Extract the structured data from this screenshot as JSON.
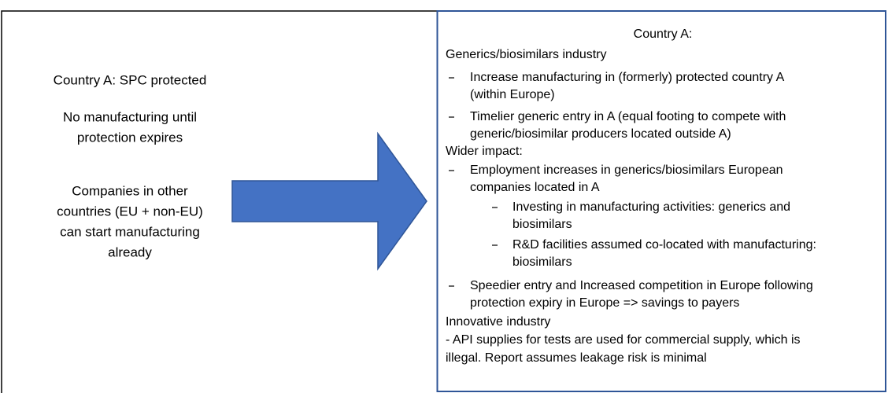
{
  "left_panel": {
    "heading": "Country A: SPC protected",
    "paragraphs": [
      [
        "No manufacturing until",
        "protection expires"
      ],
      [
        "Companies in other",
        "countries (EU + non-EU)",
        "can start manufacturing",
        "already"
      ]
    ]
  },
  "right_panel": {
    "title": "Country A:",
    "generics": {
      "heading": "Generics/biosimilars industry",
      "bullets": [
        [
          "Increase manufacturing in (formerly) protected country A",
          "(within Europe)"
        ],
        [
          "Timelier generic entry in A (equal footing to compete with",
          "generic/biosimilar producers located outside A)"
        ]
      ]
    },
    "wider": {
      "heading": "Wider impact:",
      "bullets": [
        [
          "Employment increases in generics/biosimilars European",
          "companies located in A"
        ]
      ],
      "sub_bullets": [
        [
          "Investing in manufacturing activities: generics and",
          "biosimilars"
        ],
        [
          "R&D facilities assumed co-located with manufacturing:",
          "biosimilars"
        ]
      ],
      "bullets_after": [
        [
          "Speedier entry and Increased competition in Europe following",
          "protection expiry in Europe => savings to payers"
        ]
      ]
    },
    "innovative": {
      "heading": "Innovative industry",
      "lines": [
        "- API supplies for tests are used for commercial supply, which is",
        "illegal. Report assumes leakage risk is minimal"
      ]
    }
  }
}
